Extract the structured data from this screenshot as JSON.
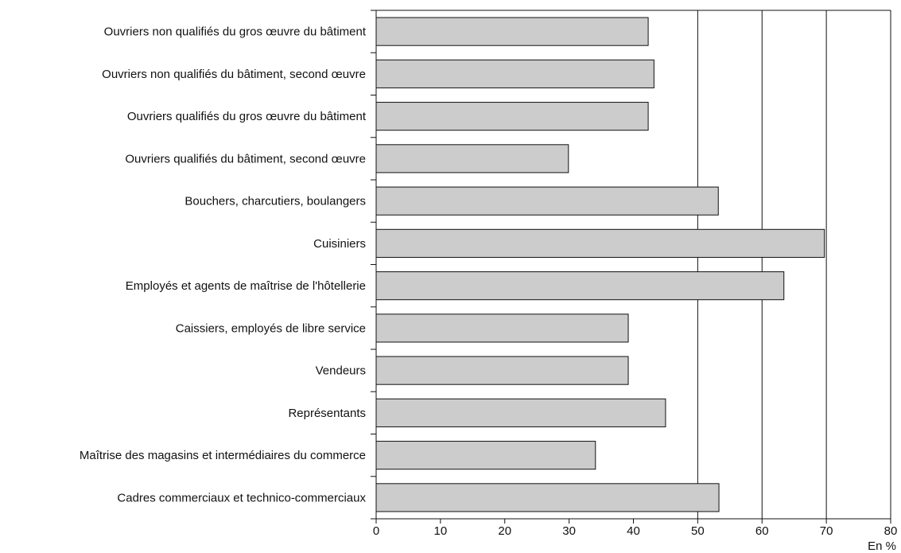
{
  "chart_data": {
    "type": "bar",
    "orientation": "horizontal",
    "categories": [
      "Ouvriers non qualifiés du gros œuvre du bâtiment",
      "Ouvriers non qualifiés du bâtiment, second œuvre",
      "Ouvriers qualifiés du gros œuvre du bâtiment",
      "Ouvriers qualifiés du bâtiment, second œuvre",
      "Bouchers, charcutiers, boulangers",
      "Cuisiniers",
      "Employés et agents de maîtrise de l'hôtellerie",
      "Caissiers, employés de libre service",
      "Vendeurs",
      "Représentants",
      "Maîtrise des magasins et intermédiaires du commerce",
      "Cadres commerciaux et technico-commerciaux"
    ],
    "values": [
      42.3,
      43.2,
      42.3,
      29.9,
      53.2,
      69.7,
      63.4,
      39.2,
      39.2,
      45.0,
      34.1,
      53.3
    ],
    "title": "",
    "xlabel": "",
    "ylabel": "",
    "unit_label": "En %",
    "xlim": [
      0,
      80
    ],
    "xticks": [
      "0",
      "10",
      "20",
      "30",
      "40",
      "50",
      "60",
      "70",
      "80"
    ],
    "grid": "vertical lines at 50, 60, 70",
    "bar_color": "#cccccc",
    "bar_edge_color": "#111111"
  }
}
